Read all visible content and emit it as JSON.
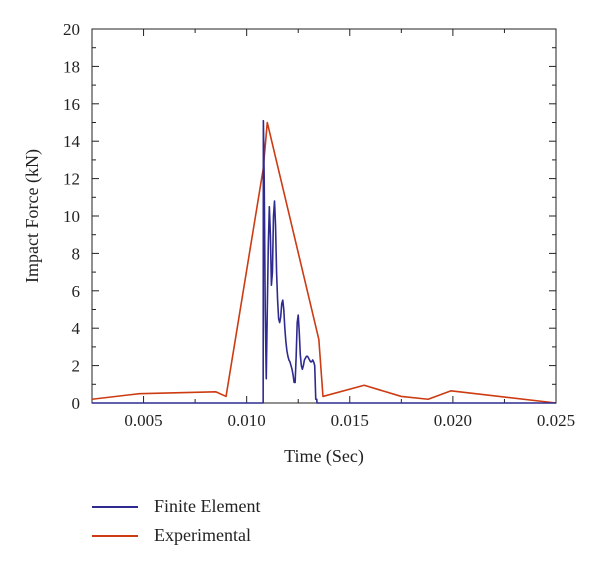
{
  "chart_data": {
    "type": "line",
    "xlabel": "Time (Sec)",
    "ylabel": "Impact Force (kN)",
    "xlim": [
      0.0025,
      0.025
    ],
    "ylim": [
      0,
      20
    ],
    "x_ticks": [
      "0.005",
      "0.010",
      "0.015",
      "0.020",
      "0.025"
    ],
    "x_tick_values": [
      0.005,
      0.01,
      0.015,
      0.02,
      0.025
    ],
    "y_ticks": [
      "0",
      "2",
      "4",
      "6",
      "8",
      "10",
      "12",
      "14",
      "16",
      "18",
      "20"
    ],
    "y_tick_values": [
      0,
      2,
      4,
      6,
      8,
      10,
      12,
      14,
      16,
      18,
      20
    ],
    "grid": false,
    "legend_position": "bottom-left",
    "series": [
      {
        "name": "Finite Element",
        "color": "#2e2a8f",
        "x": [
          0.0025,
          0.0108,
          0.01081,
          0.01085,
          0.0109,
          0.01095,
          0.011,
          0.01105,
          0.0111,
          0.01115,
          0.0112,
          0.01125,
          0.0113,
          0.01135,
          0.0114,
          0.01145,
          0.0115,
          0.01155,
          0.0116,
          0.01165,
          0.0117,
          0.01175,
          0.0118,
          0.01185,
          0.0119,
          0.01195,
          0.012,
          0.01205,
          0.0121,
          0.01215,
          0.0122,
          0.01225,
          0.0123,
          0.01235,
          0.0124,
          0.01245,
          0.0125,
          0.01255,
          0.0126,
          0.01265,
          0.0127,
          0.01275,
          0.0128,
          0.01285,
          0.0129,
          0.01295,
          0.013,
          0.01305,
          0.0131,
          0.01315,
          0.0132,
          0.01325,
          0.0133,
          0.01335,
          0.0134,
          0.01341,
          0.025
        ],
        "values": [
          0,
          0,
          15.1,
          12.0,
          5.0,
          1.3,
          5.0,
          8.5,
          10.5,
          9.0,
          6.3,
          7.0,
          10.0,
          10.8,
          9.5,
          7.0,
          5.5,
          4.5,
          4.3,
          4.6,
          5.3,
          5.5,
          5.0,
          4.0,
          3.3,
          2.8,
          2.5,
          2.3,
          2.2,
          2.0,
          1.8,
          1.5,
          1.1,
          1.1,
          2.5,
          4.3,
          4.7,
          3.8,
          2.6,
          2.0,
          1.8,
          2.0,
          2.3,
          2.4,
          2.5,
          2.5,
          2.4,
          2.3,
          2.2,
          2.2,
          2.3,
          2.2,
          2.0,
          0.2,
          0.2,
          0,
          0
        ]
      },
      {
        "name": "Experimental",
        "color": "#cc3b12",
        "x": [
          0.0025,
          0.0048,
          0.0085,
          0.009,
          0.0108,
          0.011,
          0.0135,
          0.0137,
          0.0157,
          0.0175,
          0.0188,
          0.0199,
          0.025
        ],
        "values": [
          0.2,
          0.5,
          0.6,
          0.35,
          12.5,
          15.0,
          3.4,
          0.35,
          0.95,
          0.35,
          0.2,
          0.65,
          0.0
        ]
      }
    ]
  }
}
